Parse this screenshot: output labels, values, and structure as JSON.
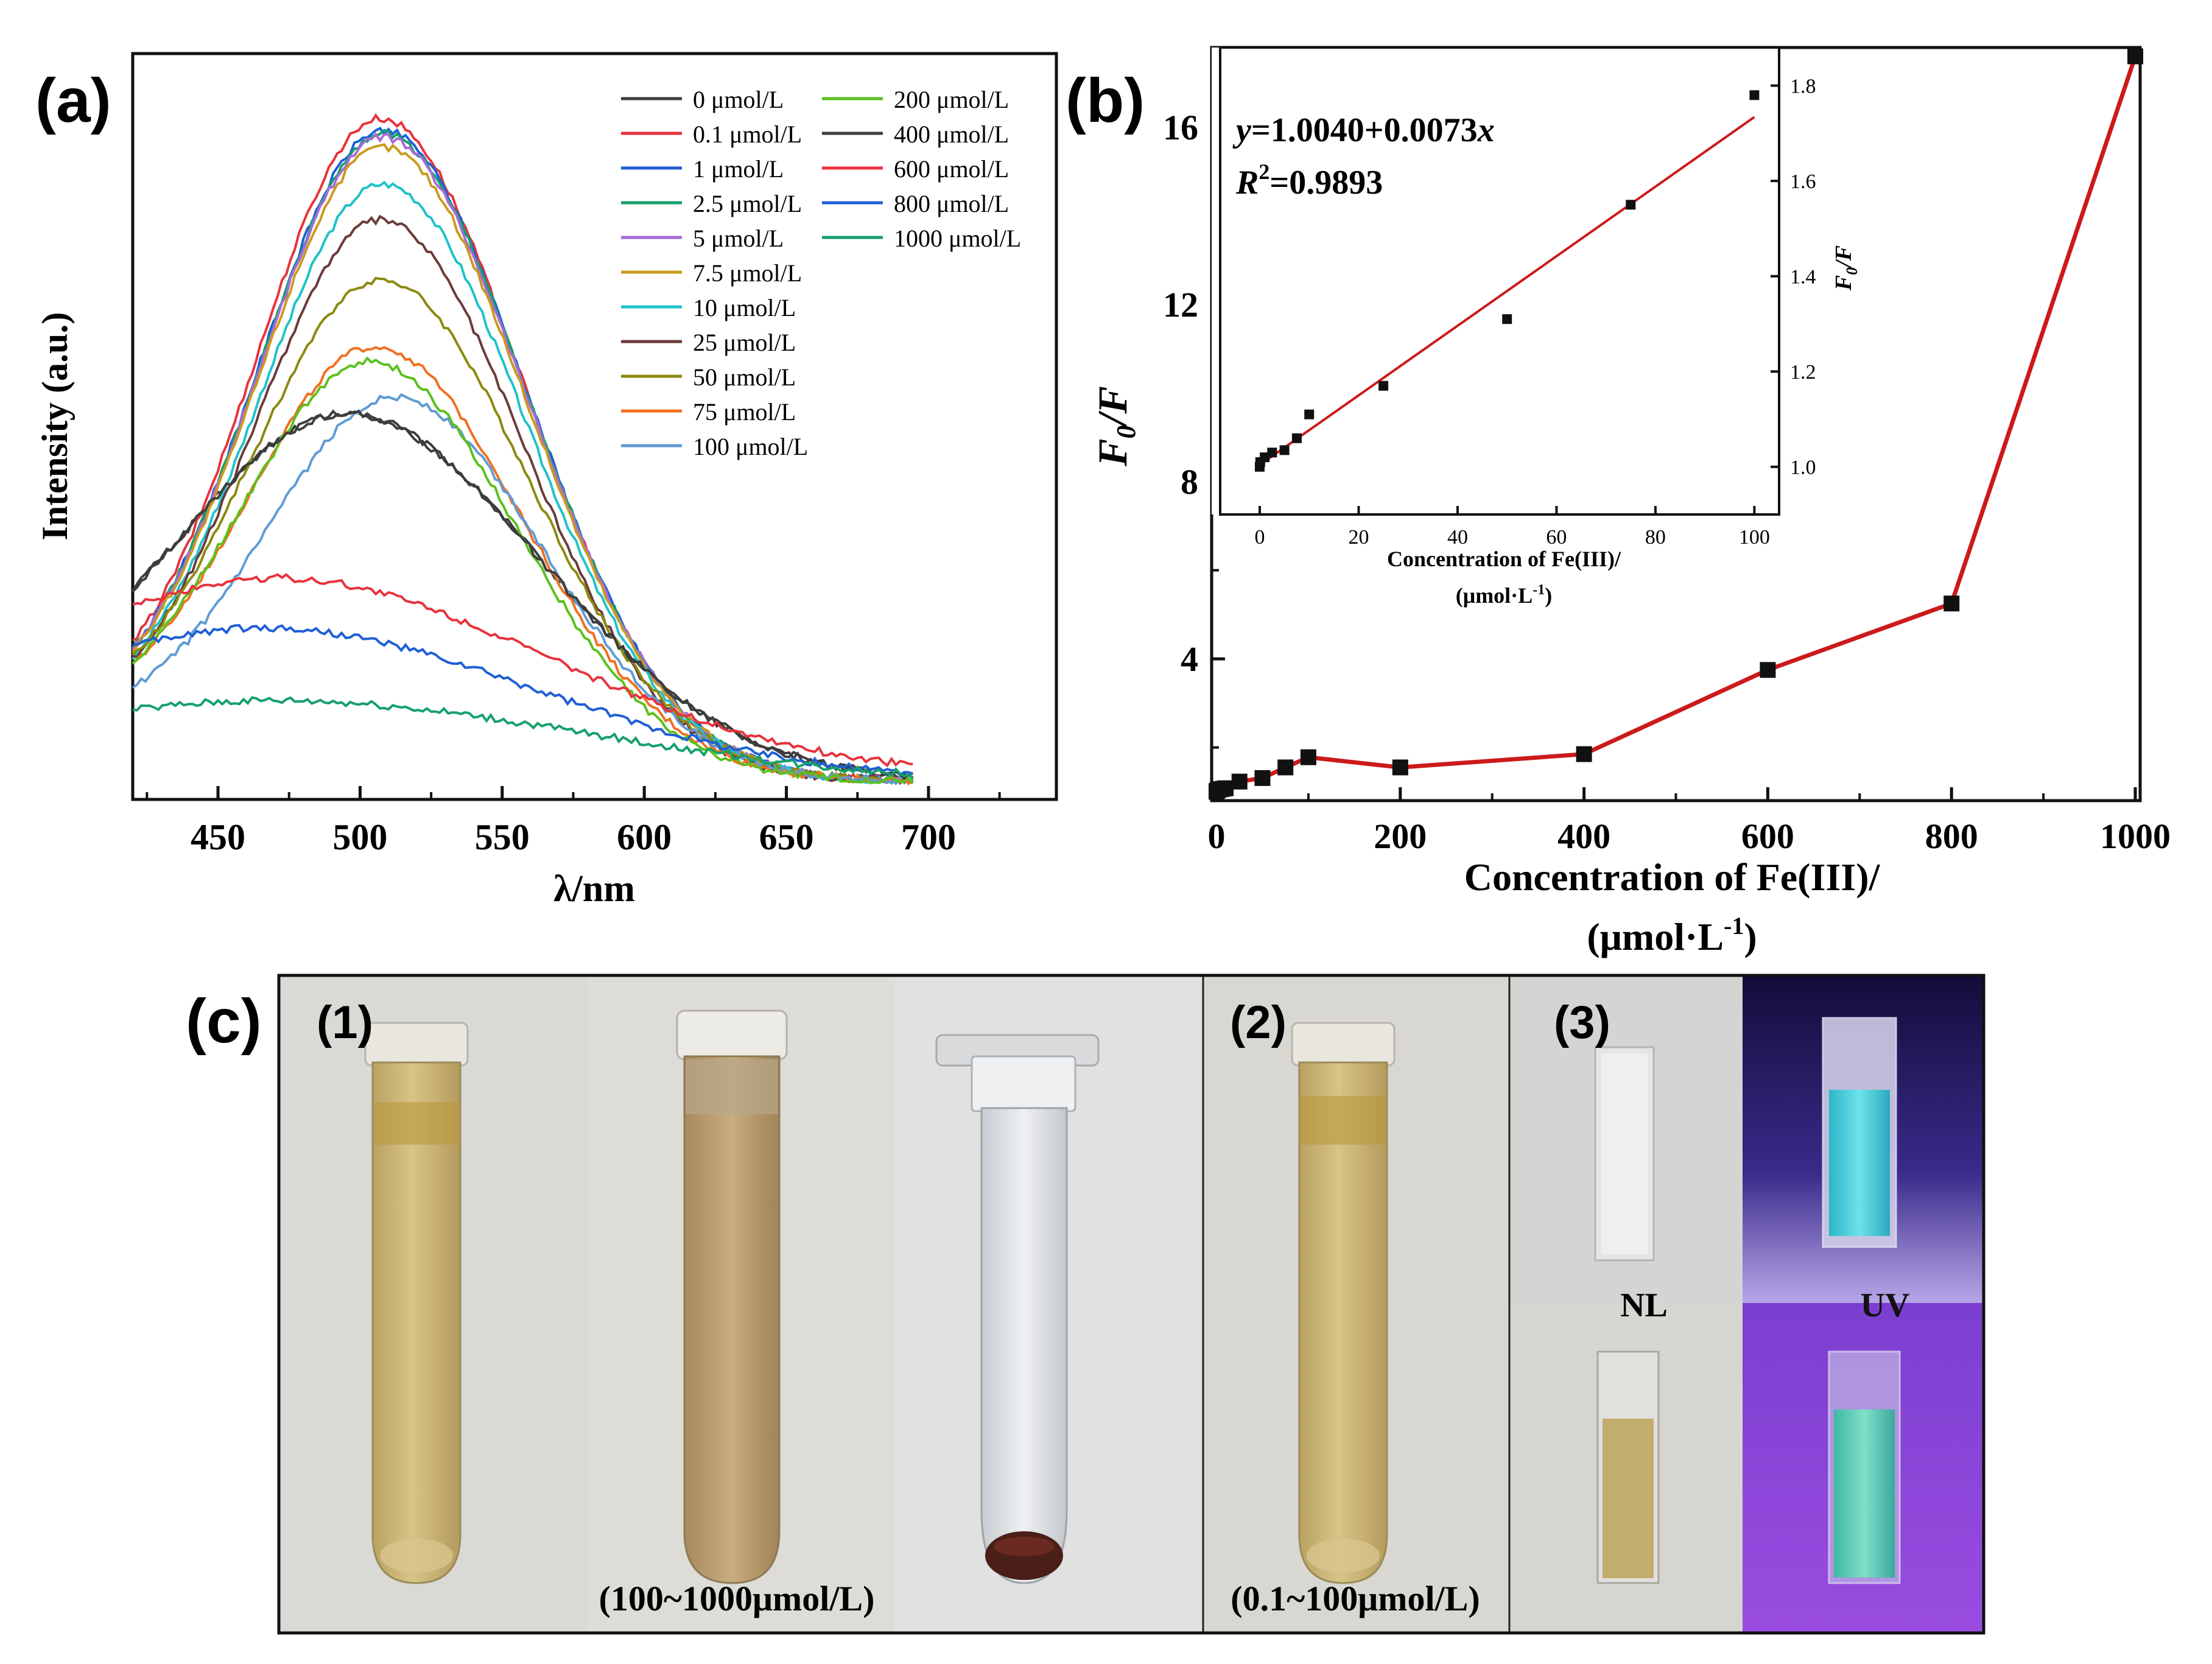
{
  "panels": {
    "a": {
      "label": "(a)"
    },
    "b": {
      "label": "(b)"
    },
    "c": {
      "label": "(c)"
    }
  },
  "chart_data": [
    {
      "id": "a",
      "type": "line",
      "title": "",
      "xlabel": "λ/nm",
      "ylabel": "Intensity (a.u.)",
      "xlim": [
        420,
        745
      ],
      "ylim": [
        0,
        1.0
      ],
      "xticks": [
        450,
        500,
        550,
        600,
        650,
        700
      ],
      "x_range": [
        420,
        695
      ],
      "legend_position": "top-right",
      "series": [
        {
          "name": "0 μmol/L",
          "color": "#3d3d3d",
          "peak": 0.517,
          "peak_x": 495,
          "sigma": 68,
          "base": 0.09,
          "floor": 0.025
        },
        {
          "name": "0.1 μmol/L",
          "color": "#e8323c",
          "peak": 0.913,
          "peak_x": 507,
          "sigma": 50,
          "base": 0.09,
          "floor": 0.025
        },
        {
          "name": "1 μmol/L",
          "color": "#1f5fd6",
          "peak": 0.897,
          "peak_x": 508,
          "sigma": 50,
          "base": 0.09,
          "floor": 0.025
        },
        {
          "name": "2.5 μmol/L",
          "color": "#16a06b",
          "peak": 0.893,
          "peak_x": 508,
          "sigma": 50,
          "base": 0.09,
          "floor": 0.025
        },
        {
          "name": "5 μmol/L",
          "color": "#a86ad6",
          "peak": 0.888,
          "peak_x": 508,
          "sigma": 50,
          "base": 0.09,
          "floor": 0.025
        },
        {
          "name": "7.5 μmol/L",
          "color": "#c99a1e",
          "peak": 0.875,
          "peak_x": 508,
          "sigma": 50,
          "base": 0.09,
          "floor": 0.025
        },
        {
          "name": "10 μmol/L",
          "color": "#1fc2c9",
          "peak": 0.825,
          "peak_x": 508,
          "sigma": 50,
          "base": 0.09,
          "floor": 0.025
        },
        {
          "name": "25 μmol/L",
          "color": "#6b3a3a",
          "peak": 0.777,
          "peak_x": 507,
          "sigma": 50,
          "base": 0.09,
          "floor": 0.025
        },
        {
          "name": "50 μmol/L",
          "color": "#8a8a10",
          "peak": 0.697,
          "peak_x": 507,
          "sigma": 52,
          "base": 0.09,
          "floor": 0.025
        },
        {
          "name": "75 μmol/L",
          "color": "#f07020",
          "peak": 0.607,
          "peak_x": 505,
          "sigma": 52,
          "base": 0.09,
          "floor": 0.025
        },
        {
          "name": "100 μmol/L",
          "color": "#5f9bd6",
          "peak": 0.54,
          "peak_x": 512,
          "sigma": 52,
          "base": 0.09,
          "floor": 0.025
        },
        {
          "name": "200 μmol/L",
          "color": "#5cc01e",
          "peak": 0.587,
          "peak_x": 503,
          "sigma": 52,
          "base": 0.09,
          "floor": 0.025
        },
        {
          "name": "400 μmol/L",
          "color": "#3d3d3d",
          "peak": 0.517,
          "peak_x": 495,
          "sigma": 68,
          "base": 0.09,
          "floor": 0.025
        },
        {
          "name": "600 μmol/L",
          "color": "#e8323c",
          "peak": 0.297,
          "peak_x": 470,
          "sigma": 95,
          "base": 0.06,
          "floor": 0.03
        },
        {
          "name": "800 μmol/L",
          "color": "#1f5fd6",
          "peak": 0.23,
          "peak_x": 465,
          "sigma": 95,
          "base": 0.045,
          "floor": 0.025
        },
        {
          "name": "1000 μmol/L",
          "color": "#16a06b",
          "peak": 0.133,
          "peak_x": 470,
          "sigma": 110,
          "base": 0.02,
          "floor": 0.02
        }
      ]
    },
    {
      "id": "b",
      "type": "line",
      "title": "",
      "xlabel_line1": "Concentration of Fe(III)/",
      "xlabel_line2": "(μmol·L",
      "xlabel_sup": "-1",
      "xlabel_tail": ")",
      "ylabel_main": "F",
      "ylabel_sub": "0",
      "ylabel_tail": "/F",
      "xlim": [
        0,
        1000
      ],
      "ylim": [
        0.8,
        17.8
      ],
      "xticks": [
        0,
        200,
        400,
        600,
        800,
        1000
      ],
      "yticks": [
        4,
        8,
        12,
        16
      ],
      "line_color": "#cc1a1a",
      "x": [
        0,
        0.1,
        1,
        2.5,
        5,
        7.5,
        10,
        25,
        50,
        75,
        100,
        200,
        400,
        600,
        800,
        1000
      ],
      "y": [
        1.0,
        1.02,
        1.03,
        1.05,
        1.06,
        1.07,
        1.08,
        1.23,
        1.31,
        1.55,
        1.78,
        1.55,
        1.85,
        3.75,
        5.25,
        17.6
      ]
    },
    {
      "id": "b-inset",
      "type": "scatter",
      "xlabel_line1": "Concentration of Fe(III)/",
      "xlabel_line2": "(μmol·L",
      "xlabel_sup": "-1",
      "xlabel_tail": ")",
      "ylabel_main": "F",
      "ylabel_sub": "0",
      "ylabel_tail": "/F",
      "xlim": [
        -8,
        105
      ],
      "ylim": [
        0.9,
        1.88
      ],
      "xticks": [
        0,
        20,
        40,
        60,
        80,
        100
      ],
      "yticks": [
        1.0,
        1.2,
        1.4,
        1.6,
        1.8
      ],
      "fit_color": "#cc1a1a",
      "equation_prefix": "y",
      "equation_body": "=1.0040+0.0073",
      "equation_var": "x",
      "r2_main": "R",
      "r2_sup": "2",
      "r2_value": "=0.9893",
      "fit_intercept": 1.004,
      "fit_slope": 0.0073,
      "x": [
        0,
        0.1,
        1,
        2.5,
        5,
        7.5,
        10,
        25,
        50,
        75,
        100
      ],
      "y": [
        1.0,
        1.01,
        1.02,
        1.03,
        1.035,
        1.06,
        1.11,
        1.17,
        1.31,
        1.55,
        1.78
      ]
    }
  ],
  "photos": {
    "group1_label": "(1)",
    "group1_caption": "(100~1000μmol/L)",
    "group2_label": "(2)",
    "group2_caption": "(0.1~100μmol/L)",
    "group3_label": "(3)",
    "nl_label": "NL",
    "uv_label": "UV"
  },
  "colors": {
    "axis": "#111111",
    "photo_bg": "#dcdcd8",
    "uv_top_bg": "#1a1240",
    "uv_bottom_bg": "#8a3ad0",
    "solution_yellow": "#c9b274",
    "fluorescence_cyan": "#3fc9d0"
  }
}
